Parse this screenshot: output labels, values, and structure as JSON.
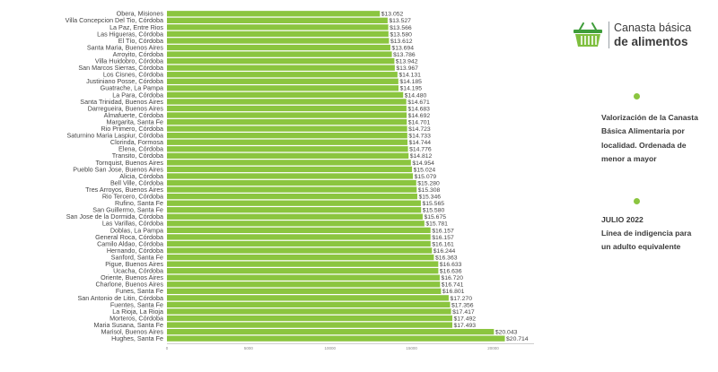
{
  "brand": {
    "line1": "Canasta básica",
    "line2": "de alimentos",
    "logo_icon": "shopping-basket-icon",
    "accent": "#7fbf3f"
  },
  "side_panel": {
    "description": "Valorización de la Canasta Básica Alimentaria por localidad. Ordenada de menor a mayor",
    "period_title": "JULIO 2022",
    "period_text": "Línea de indigencia para un adulto equivalente"
  },
  "chart_data": {
    "type": "bar",
    "orientation": "horizontal",
    "bar_color": "#8bc53f",
    "value_prefix": "$",
    "xlim": [
      0,
      22500
    ],
    "xticks": [
      0,
      5000,
      10000,
      15000,
      20000
    ],
    "xtick_labels": [
      "0",
      "5000",
      "10000",
      "15000",
      "20000"
    ],
    "categories": [
      "Obera, Misiones",
      "Villa Concepcion Del Tio, Córdoba",
      "La Paz, Entre Rios",
      "Las Higueras, Córdoba",
      "El Tío, Córdoba",
      "Santa Maria, Buenos Aires",
      "Arroyito, Córdoba",
      "Villa Huidobro, Córdoba",
      "San Marcos Sierras, Córdoba",
      "Los Cisnes, Córdoba",
      "Justiniano Posse, Córdoba",
      "Guatrache, La Pampa",
      "La Para, Córdoba",
      "Santa Trinidad, Buenos Aires",
      "Darregueira, Buenos Aires",
      "Almafuerte, Córdoba",
      "Margarita, Santa Fe",
      "Rio Primero, Córdoba",
      "Saturnino Maria Laspiur, Córdoba",
      "Clorinda, Formosa",
      "Elena, Córdoba",
      "Transito, Córdoba",
      "Tornquist, Buenos Aires",
      "Pueblo San Jose, Buenos Aires",
      "Alicia, Córdoba",
      "Bell Ville, Córdoba",
      "Tres Arroyos, Buenos Aires",
      "Rio Tercero, Córdoba",
      "Rufino, Santa Fe",
      "San Guillermo, Santa Fe",
      "San Jose de la Dormida, Córdoba",
      "Las Varillas, Córdoba",
      "Doblas, La Pampa",
      "General Roca, Córdoba",
      "Camilo Aldao, Córdoba",
      "Hernando, Córdoba",
      "Sanford, Santa Fe",
      "Pigue, Buenos Aires",
      "Ucacha, Córdoba",
      "Oriente, Buenos Aires",
      "Charlone, Buenos Aires",
      "Funes, Santa Fe",
      "San Antonio de Litin, Córdoba",
      "Fuentes, Santa Fe",
      "La Rioja, La Rioja",
      "Morteros, Córdoba",
      "Maria Susana, Santa Fe",
      "Marisol, Buenos Aires",
      "Hughes, Santa Fe"
    ],
    "values": [
      13052,
      13527,
      13566,
      13580,
      13612,
      13694,
      13786,
      13942,
      13967,
      14131,
      14185,
      14195,
      14480,
      14671,
      14683,
      14692,
      14701,
      14723,
      14733,
      14744,
      14776,
      14812,
      14954,
      15024,
      15079,
      15280,
      15308,
      15346,
      15565,
      15580,
      15675,
      15781,
      16157,
      16157,
      16161,
      16244,
      16363,
      16633,
      16636,
      16720,
      16741,
      16801,
      17270,
      17356,
      17417,
      17492,
      17493,
      20043,
      20714
    ],
    "value_labels": [
      "$13.052",
      "$13.527",
      "$13.566",
      "$13.580",
      "$13.612",
      "$13.694",
      "$13.786",
      "$13.942",
      "$13.967",
      "$14.131",
      "$14.185",
      "$14.195",
      "$14.480",
      "$14.671",
      "$14.683",
      "$14.692",
      "$14.701",
      "$14.723",
      "$14.733",
      "$14.744",
      "$14.776",
      "$14.812",
      "$14.954",
      "$15.024",
      "$15.079",
      "$15.280",
      "$15.308",
      "$15.346",
      "$15.565",
      "$15.580",
      "$15.675",
      "$15.781",
      "$16.157",
      "$16.157",
      "$16.161",
      "$16.244",
      "$16.363",
      "$16.633",
      "$16.636",
      "$16.720",
      "$16.741",
      "$16.801",
      "$17.270",
      "$17.356",
      "$17.417",
      "$17.492",
      "$17.493",
      "$20.043",
      "$20.714"
    ]
  }
}
